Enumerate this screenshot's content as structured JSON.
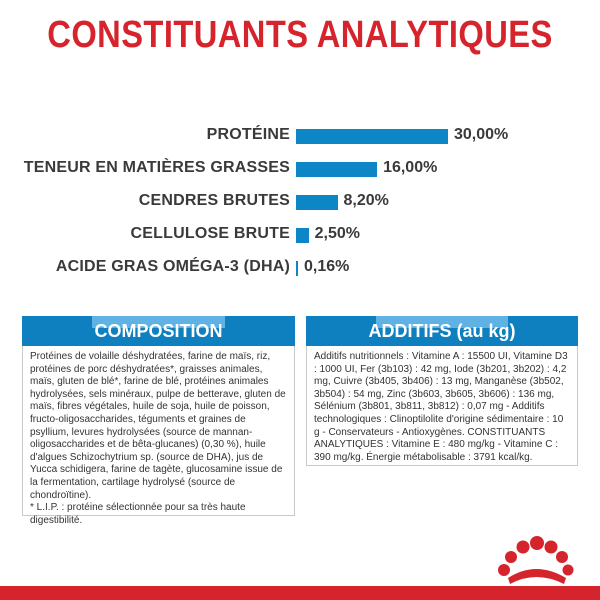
{
  "title": "CONSTITUANTS ANALYTIQUES",
  "colors": {
    "brand_red": "#d6242d",
    "bar_blue": "#0d86c6",
    "header_blue": "#0e80c0"
  },
  "chart_data": {
    "type": "bar",
    "orientation": "horizontal",
    "categories": [
      "PROTÉINE",
      "TENEUR EN MATIÈRES GRASSES",
      "CENDRES BRUTES",
      "CELLULOSE BRUTE",
      "ACIDE GRAS OMÉGA-3 (DHA)"
    ],
    "values": [
      30.0,
      16.0,
      8.2,
      2.5,
      0.16
    ],
    "value_labels": [
      "30,00%",
      "16,00%",
      "8,20%",
      "2,50%",
      "0,16%"
    ],
    "title": "",
    "xlabel": "",
    "ylabel": ""
  },
  "composition": {
    "heading": "COMPOSITION",
    "text": "Protéines de volaille déshydratées, farine de maïs, riz, protéines de porc déshydratées*, graisses animales, maïs, gluten de blé*, farine de blé, protéines animales hydrolysées, sels minéraux, pulpe de betterave, gluten de maïs, fibres végétales, huile de soja, huile de poisson, fructo-oligosaccharides, téguments et graines de psyllium, levures hydrolysées (source de mannan-oligosaccharides et de bêta-glucanes) (0,30 %), huile d'algues Schizochytrium sp. (source de DHA), jus de Yucca schidigera, farine de tagète, glucosamine issue de la fermentation, cartilage hydrolysé (source de chondroïtine).",
    "footnote": "* L.I.P. : protéine sélectionnée pour sa très haute digestibilité."
  },
  "additifs": {
    "heading": "ADDITIFS (au kg)",
    "text": "Additifs nutritionnels : Vitamine A : 15500 UI, Vitamine D3 : 1000 UI, Fer (3b103) : 42 mg, Iode (3b201, 3b202) : 4,2 mg, Cuivre (3b405, 3b406) : 13 mg, Manganèse (3b502, 3b504) : 54 mg, Zinc (3b603, 3b605, 3b606) : 136 mg, Sélénium (3b801, 3b811, 3b812) : 0,07 mg - Additifs technologiques : Clinoptilolite d'origine sédimentaire : 10 g - Conservateurs - Antioxygènes. CONSTITUANTS ANALYTIQUES : Vitamine E : 480 mg/kg - Vitamine C : 390 mg/kg. Énergie métabolisable : 3791 kcal/kg."
  },
  "logo": {
    "icon": "royal-canin-crown-icon"
  }
}
